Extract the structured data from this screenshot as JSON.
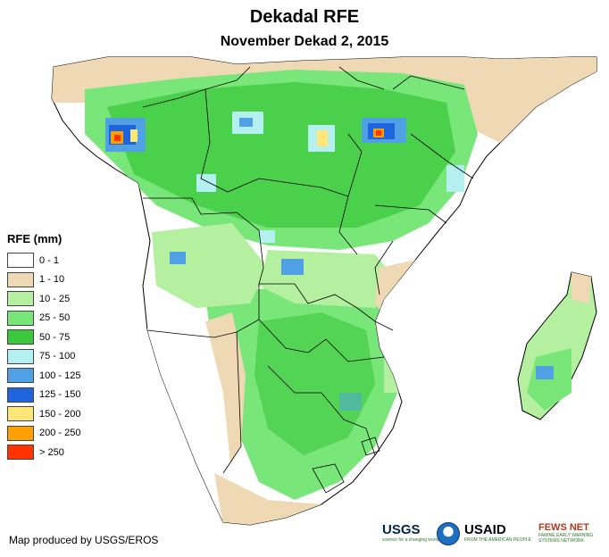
{
  "header": {
    "title": "Dekadal RFE",
    "subtitle": "November Dekad 2, 2015"
  },
  "legend": {
    "title": "RFE (mm)",
    "items": [
      {
        "label": "0 - 1",
        "color": "#ffffff"
      },
      {
        "label": "1 - 10",
        "color": "#efd9b4"
      },
      {
        "label": "10 - 25",
        "color": "#b4f0a0"
      },
      {
        "label": "25 - 50",
        "color": "#78e678"
      },
      {
        "label": "50 - 75",
        "color": "#3cc83c"
      },
      {
        "label": "75 - 100",
        "color": "#b4f0f0"
      },
      {
        "label": "100 - 125",
        "color": "#50a0e6"
      },
      {
        "label": "125 - 150",
        "color": "#1e64dc"
      },
      {
        "label": "150 - 200",
        "color": "#ffe678"
      },
      {
        "label": "200 - 250",
        "color": "#ffa000"
      },
      {
        "label": "> 250",
        "color": "#ff3200"
      }
    ]
  },
  "footer": {
    "credit": "Map produced by USGS/EROS",
    "logos": {
      "usgs": "USGS",
      "usgs_tagline": "science for a changing world",
      "usaid": "USAID",
      "usaid_tagline": "FROM THE AMERICAN PEOPLE",
      "fews": "FEWS NET",
      "fews_tagline": "FAMINE EARLY WARNING SYSTEMS NETWORK"
    }
  }
}
